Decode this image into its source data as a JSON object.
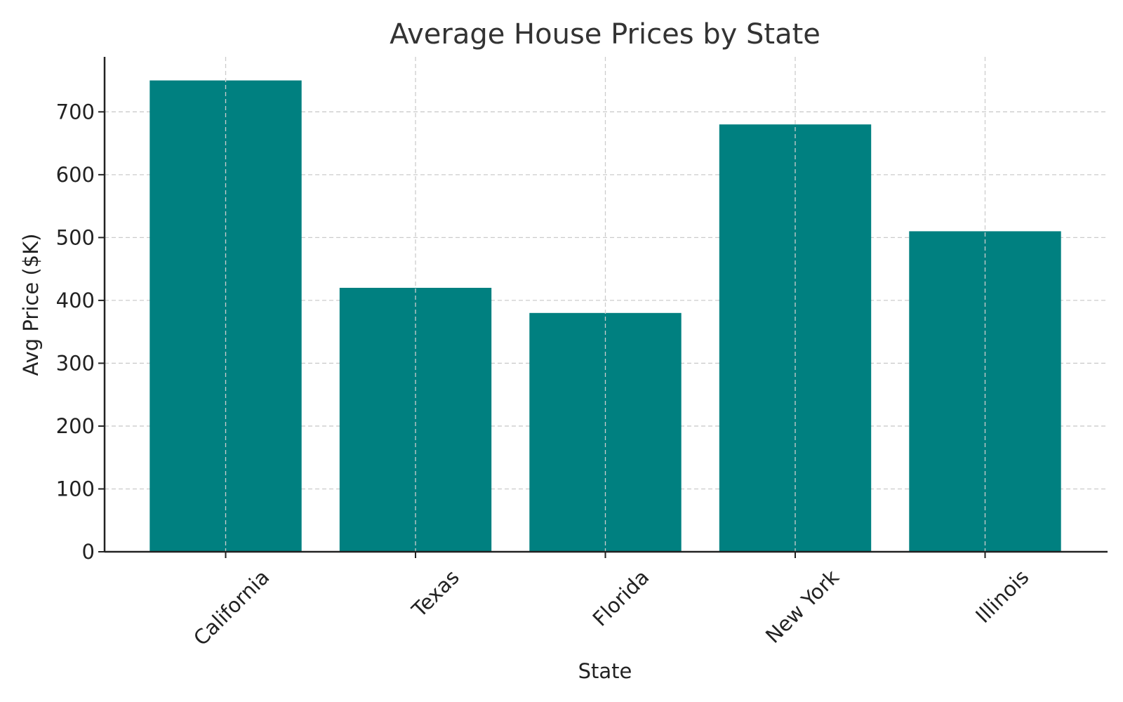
{
  "chart_data": {
    "type": "bar",
    "title": "Average House Prices by State",
    "xlabel": "State",
    "ylabel": "Avg Price ($K)",
    "categories": [
      "California",
      "Texas",
      "Florida",
      "New York",
      "Illinois"
    ],
    "values": [
      750,
      420,
      380,
      680,
      510
    ],
    "ylim": [
      0,
      787.5
    ],
    "yticks": [
      0,
      100,
      200,
      300,
      400,
      500,
      600,
      700
    ],
    "grid": true,
    "bar_color": "#008080"
  }
}
